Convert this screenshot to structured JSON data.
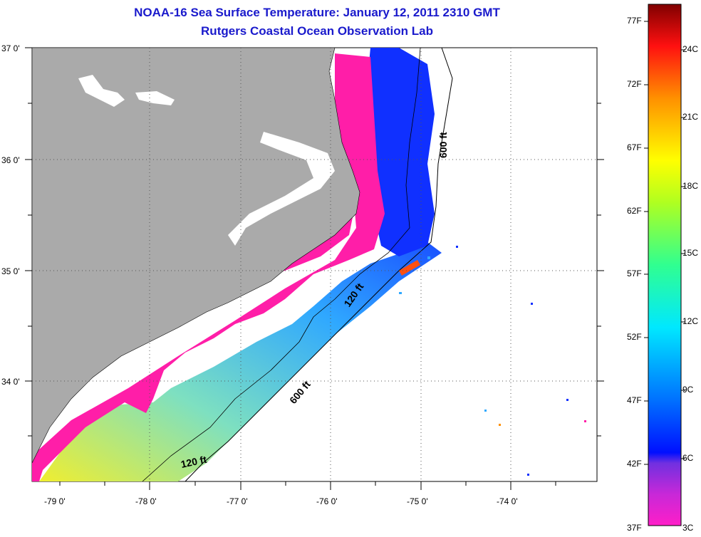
{
  "title": {
    "line1": "NOAA-16 Sea Surface Temperature:  January 12, 2011 2310 GMT",
    "line2": "Rutgers Coastal Ocean Observation Lab"
  },
  "map": {
    "lat_labels": [
      {
        "key": "lat37",
        "text": "37 0'"
      },
      {
        "key": "lat36",
        "text": "36 0'"
      },
      {
        "key": "lat35",
        "text": "35 0'"
      },
      {
        "key": "lat34",
        "text": "34 0'"
      }
    ],
    "lon_labels": [
      {
        "key": "lon79",
        "text": "-79 0'"
      },
      {
        "key": "lon78",
        "text": "-78 0'"
      },
      {
        "key": "lon77",
        "text": "-77 0'"
      },
      {
        "key": "lon76",
        "text": "-76 0'"
      },
      {
        "key": "lon75",
        "text": "-75 0'"
      },
      {
        "key": "lon74",
        "text": "-74 0'"
      }
    ],
    "depth_labels": [
      "600 ft",
      "120 ft",
      "600 ft",
      "120 ft"
    ],
    "colors": {
      "land": "#aaaaaa",
      "cold": "#ff1ea8",
      "cool": "#1030ff",
      "mid": "#2fa8ff",
      "warm": "#f0ee30"
    }
  },
  "colorbar": {
    "fahrenheit": [
      "77F",
      "72F",
      "67F",
      "62F",
      "57F",
      "52F",
      "47F",
      "42F",
      "37F"
    ],
    "celsius": [
      "24C",
      "21C",
      "18C",
      "15C",
      "12C",
      "9C",
      "6C",
      "3C"
    ]
  }
}
